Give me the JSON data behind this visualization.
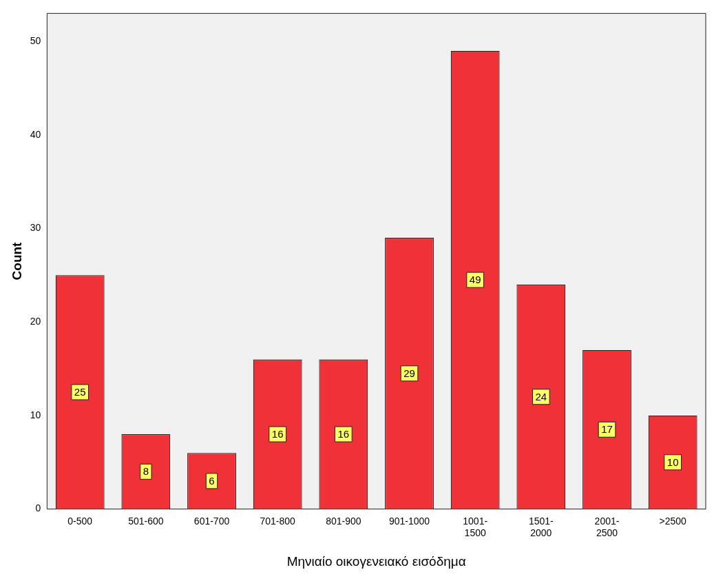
{
  "chart_data": {
    "type": "bar",
    "xlabel": "Μηνιαίο οικογενειακό εισόδημα",
    "ylabel": "Count",
    "categories": [
      "0-500",
      "501-600",
      "601-700",
      "701-800",
      "801-900",
      "901-1000",
      "1001-1500",
      "1501-2000",
      "2001-2500",
      ">2500"
    ],
    "values": [
      25,
      8,
      6,
      16,
      16,
      29,
      49,
      24,
      17,
      10
    ],
    "color": "#f03238",
    "ylim": [
      0,
      53
    ],
    "yticks": [
      0,
      10,
      20,
      30,
      40,
      50
    ],
    "grid": false,
    "legend": false,
    "data_labels": true
  }
}
